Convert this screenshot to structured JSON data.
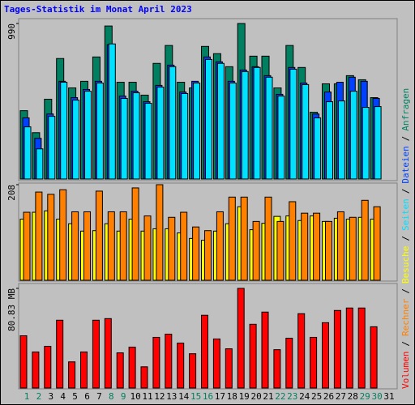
{
  "title": "Tages-Statistik im Monat April 2023",
  "legend_separator": "/",
  "chart_data": [
    {
      "type": "bar",
      "series": [
        {
          "name": "Anfragen",
          "color": "#008060",
          "values": [
            435,
            295,
            508,
            767,
            580,
            622,
            777,
            974,
            616,
            616,
            534,
            736,
            850,
            616,
            580,
            844,
            798,
            715,
            990,
            782,
            782,
            580,
            850,
            710,
            425,
            606,
            606,
            658,
            632,
            518,
            null
          ]
        },
        {
          "name": "Dateien",
          "color": "#0040ff",
          "values": [
            389,
            259,
            414,
            622,
            518,
            570,
            622,
            855,
            528,
            559,
            492,
            596,
            725,
            554,
            622,
            777,
            746,
            622,
            694,
            715,
            658,
            539,
            710,
            611,
            414,
            554,
            616,
            648,
            622,
            513,
            null
          ]
        },
        {
          "name": "Seiten",
          "color": "#00e0ff",
          "values": [
            332,
            192,
            399,
            616,
            502,
            559,
            611,
            860,
            513,
            549,
            482,
            585,
            715,
            544,
            611,
            761,
            736,
            611,
            684,
            710,
            648,
            528,
            699,
            601,
            389,
            492,
            497,
            559,
            456,
            461,
            null
          ]
        }
      ],
      "ylim": [
        0,
        990
      ],
      "yticks": [
        990
      ]
    },
    {
      "type": "bar",
      "series": [
        {
          "name": "Besuche",
          "color": "#ffff00",
          "values": [
            133,
            148,
            151,
            133,
            123,
            107,
            108,
            123,
            107,
            133,
            107,
            112,
            112,
            103,
            91,
            87,
            107,
            123,
            160,
            110,
            124,
            139,
            140,
            130,
            140,
            128,
            135,
            133,
            137,
            133,
            null
          ]
        },
        {
          "name": "Rechner",
          "color": "#ff8000",
          "values": [
            148,
            192,
            187,
            197,
            149,
            149,
            194,
            149,
            149,
            201,
            140,
            208,
            137,
            148,
            116,
            108,
            149,
            181,
            181,
            128,
            181,
            128,
            171,
            146,
            146,
            128,
            149,
            137,
            174,
            160,
            null
          ]
        }
      ],
      "ylim": [
        0,
        208
      ],
      "yticks": [
        208
      ]
    },
    {
      "type": "bar",
      "categories": [
        "1",
        "2",
        "3",
        "4",
        "5",
        "6",
        "7",
        "8",
        "9",
        "10",
        "11",
        "12",
        "13",
        "14",
        "15",
        "16",
        "17",
        "18",
        "19",
        "20",
        "21",
        "22",
        "23",
        "24",
        "25",
        "26",
        "27",
        "28",
        "29",
        "30",
        "31"
      ],
      "category_colors": [
        "#008060",
        "#008060",
        "#000000",
        "#000000",
        "#000000",
        "#000000",
        "#000000",
        "#008060",
        "#008060",
        "#000000",
        "#000000",
        "#000000",
        "#000000",
        "#000000",
        "#008060",
        "#008060",
        "#000000",
        "#000000",
        "#000000",
        "#000000",
        "#000000",
        "#008060",
        "#008060",
        "#000000",
        "#000000",
        "#000000",
        "#000000",
        "#000000",
        "#008060",
        "#008060",
        "#000000"
      ],
      "series": [
        {
          "name": "Volumen",
          "color": "#ff0000",
          "values": [
            42.4,
            29.2,
            33.8,
            55.0,
            21.2,
            29.2,
            55.0,
            56.3,
            28.5,
            33.1,
            17.2,
            41.1,
            43.7,
            36.4,
            27.8,
            59.0,
            39.8,
            31.8,
            80.83,
            51.7,
            61.6,
            31.1,
            40.4,
            60.3,
            41.1,
            53.0,
            62.9,
            64.9,
            64.9,
            49.7,
            null
          ]
        }
      ],
      "ylim": [
        0,
        80.83
      ],
      "yticks": [
        {
          "value": 80.83,
          "label": "80.83 MB"
        }
      ]
    }
  ]
}
